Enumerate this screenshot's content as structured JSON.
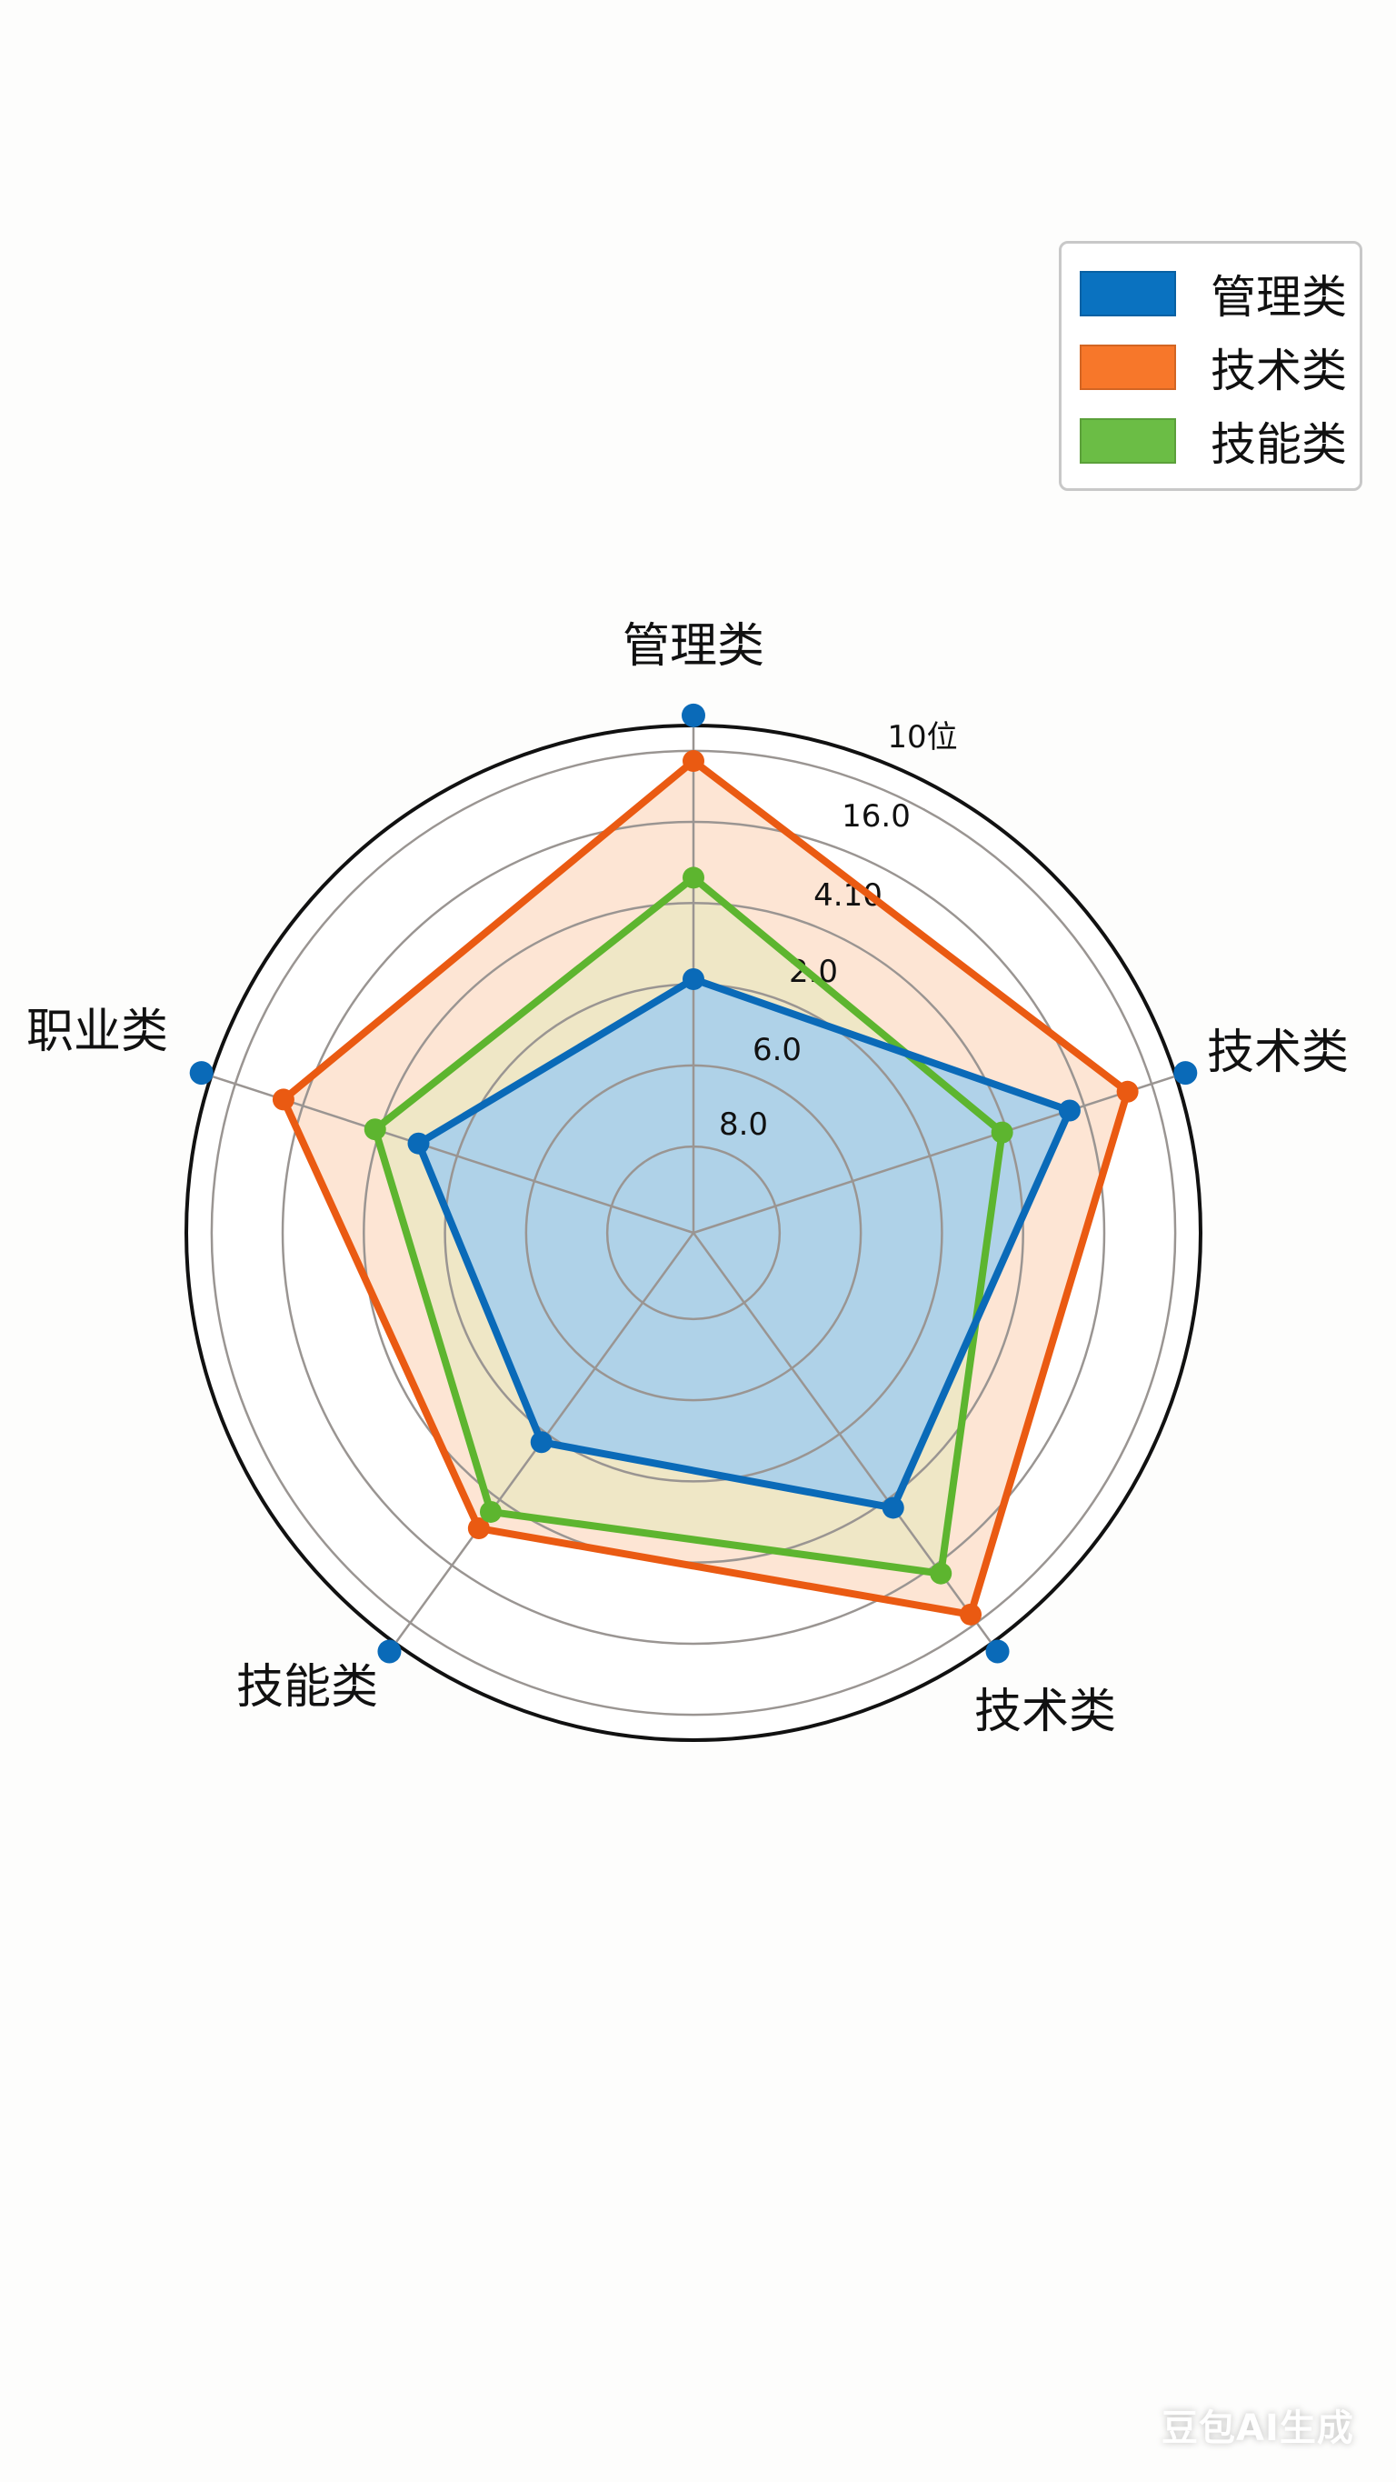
{
  "chart_data": {
    "type": "radar",
    "axes": [
      "管理类",
      "技术类",
      "技术类",
      "技能类",
      "职业类"
    ],
    "radial_tick_labels": [
      "8.0",
      "6.0",
      "2.0",
      "4.10",
      "16.0",
      "10位"
    ],
    "rlim": [
      0,
      1
    ],
    "grid": true,
    "legend_position": "top-right",
    "series": [
      {
        "name": "管理类",
        "color": "#0a6ab8",
        "fill": "#a9d0ea",
        "values": [
          0.5,
          0.78,
          0.67,
          0.51,
          0.57
        ]
      },
      {
        "name": "技术类",
        "color": "#ea5a12",
        "fill": "#fde1cc",
        "values": [
          0.93,
          0.9,
          0.93,
          0.72,
          0.85
        ]
      },
      {
        "name": "技能类",
        "color": "#5db52f",
        "fill": "#ece7c3",
        "values": [
          0.7,
          0.64,
          0.83,
          0.68,
          0.66
        ]
      }
    ],
    "axis_marker_color": "#0a6ab8"
  },
  "legend": {
    "items": [
      {
        "label": "管理类",
        "color": "#0a72c0"
      },
      {
        "label": "技术类",
        "color": "#f7772a"
      },
      {
        "label": "技能类",
        "color": "#6bbd45"
      }
    ]
  },
  "watermark": "豆包AI生成"
}
